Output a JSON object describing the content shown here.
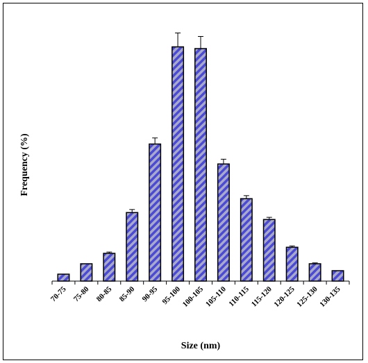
{
  "chart_data": {
    "type": "bar",
    "title": "",
    "xlabel": "Size (nm)",
    "ylabel": "Frequency (%)",
    "categories": [
      "70-75",
      "75-80",
      "80-85",
      "85-90",
      "90-95",
      "95-100",
      "100-105",
      "105-110",
      "110-115",
      "115-120",
      "120-125",
      "125-130",
      "130-135"
    ],
    "values": [
      0.8,
      2.0,
      3.2,
      7.9,
      15.8,
      27.0,
      26.8,
      13.5,
      9.5,
      7.1,
      3.9,
      2.0,
      1.2
    ],
    "errors": [
      0.0,
      0.0,
      0.15,
      0.35,
      0.7,
      1.6,
      1.4,
      0.55,
      0.35,
      0.25,
      0.15,
      0.1,
      0.0
    ],
    "ylim": [
      0,
      30
    ],
    "grid": false,
    "legend": "none",
    "bar_fill": "#4a4ad6",
    "bar_stripe": "#a9a9c9",
    "bar_edge": "#000000"
  }
}
